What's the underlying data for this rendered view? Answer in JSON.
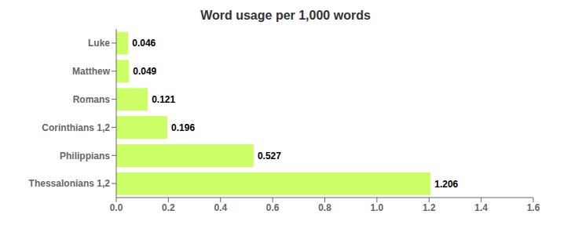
{
  "chart_data": {
    "type": "bar",
    "orientation": "horizontal",
    "title": "Word usage per 1,000 words",
    "categories": [
      "Thessalonians 1,2",
      "Philippians",
      "Corinthians 1,2",
      "Romans",
      "Matthew",
      "Luke"
    ],
    "values": [
      1.206,
      0.527,
      0.196,
      0.121,
      0.049,
      0.046
    ],
    "color": "#ccff66",
    "xlim": [
      0,
      1.6
    ],
    "xticks": [
      {
        "value": 0,
        "label": "0.0"
      },
      0.2,
      0.4,
      0.6,
      0.8,
      {
        "value": 1,
        "label": "1.0"
      },
      1.2,
      1.4,
      1.6
    ],
    "data_labels": true,
    "grid": false
  }
}
